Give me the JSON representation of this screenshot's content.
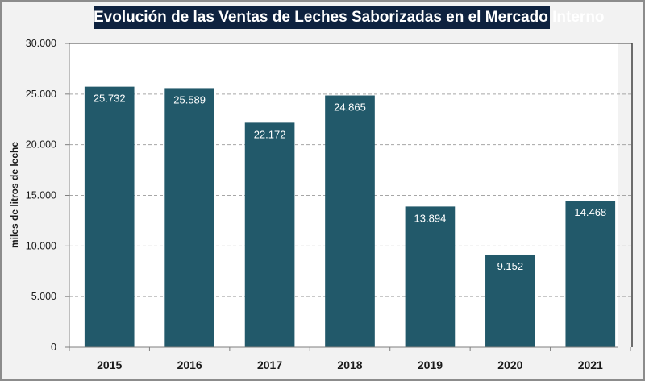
{
  "chart_data": {
    "type": "bar",
    "title": "Evolución de las Ventas de Leches Saborizadas en el Mercado Interno",
    "xlabel": "",
    "ylabel": "miles de litros de leche",
    "categories": [
      "2015",
      "2016",
      "2017",
      "2018",
      "2019",
      "2020",
      "2021"
    ],
    "values": [
      25732,
      25589,
      22172,
      24865,
      13894,
      9152,
      14468
    ],
    "data_labels": [
      "25.732",
      "25.589",
      "22.172",
      "24.865",
      "13.894",
      "9.152",
      "14.468"
    ],
    "ylim": [
      0,
      30000
    ],
    "yticks": [
      0,
      5000,
      10000,
      15000,
      20000,
      25000,
      30000
    ],
    "ytick_labels": [
      "0",
      "5.000",
      "10.000",
      "15.000",
      "20.000",
      "25.000",
      "30.000"
    ],
    "grid": true,
    "legend": "none",
    "colors": {
      "bar": "#22596a",
      "title_bg": "#0e223f",
      "title_text": "#ffffff",
      "data_label": "#ffffff",
      "grid": "#a6a6a6"
    }
  }
}
